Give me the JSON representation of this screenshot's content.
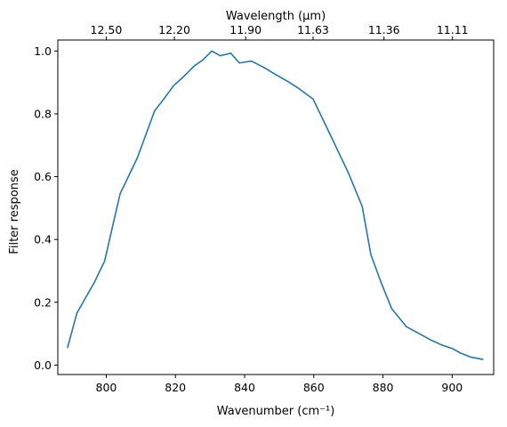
{
  "chart_data": {
    "type": "line",
    "xlabel": "Wavenumber (cm⁻¹)",
    "ylabel": "Filter response",
    "top_xlabel": "Wavelength (μm)",
    "xlim": [
      882.5,
      913
    ],
    "xlim_note": "",
    "x_range": [
      786,
      912
    ],
    "ylim": [
      -0.03,
      1.035
    ],
    "x_ticks": [
      800,
      820,
      840,
      860,
      880,
      900
    ],
    "x_tick_labels": [
      "800",
      "820",
      "840",
      "860",
      "880",
      "900"
    ],
    "y_ticks": [
      0.0,
      0.2,
      0.4,
      0.6,
      0.8,
      1.0
    ],
    "y_tick_labels": [
      "0.0",
      "0.2",
      "0.4",
      "0.6",
      "0.8",
      "1.0"
    ],
    "top_ticks_wavenumber": [
      800.0,
      819.7,
      840.3,
      859.8,
      880.3,
      900.1
    ],
    "top_tick_labels": [
      "12.50",
      "12.20",
      "11.90",
      "11.63",
      "11.36",
      "11.11"
    ],
    "grid": false,
    "series": [
      {
        "color": "#1f77b4",
        "x": [
          788.8,
          791.5,
          796.5,
          799.5,
          804.0,
          809.0,
          814.0,
          816.5,
          819.5,
          822.5,
          825.5,
          828.0,
          830.5,
          833.0,
          836.0,
          838.5,
          842.0,
          845.5,
          849.0,
          852.5,
          855.5,
          859.8,
          865.0,
          870.0,
          874.0,
          876.5,
          879.5,
          882.5,
          886.8,
          890.5,
          894.0,
          897.0,
          900.0,
          902.5,
          905.5,
          909.0
        ],
        "y": [
          0.055,
          0.165,
          0.262,
          0.33,
          0.545,
          0.66,
          0.81,
          0.845,
          0.89,
          0.92,
          0.953,
          0.972,
          1.0,
          0.985,
          0.993,
          0.962,
          0.968,
          0.948,
          0.925,
          0.903,
          0.882,
          0.847,
          0.728,
          0.612,
          0.505,
          0.352,
          0.262,
          0.18,
          0.122,
          0.1,
          0.079,
          0.064,
          0.053,
          0.038,
          0.025,
          0.018
        ]
      }
    ]
  }
}
